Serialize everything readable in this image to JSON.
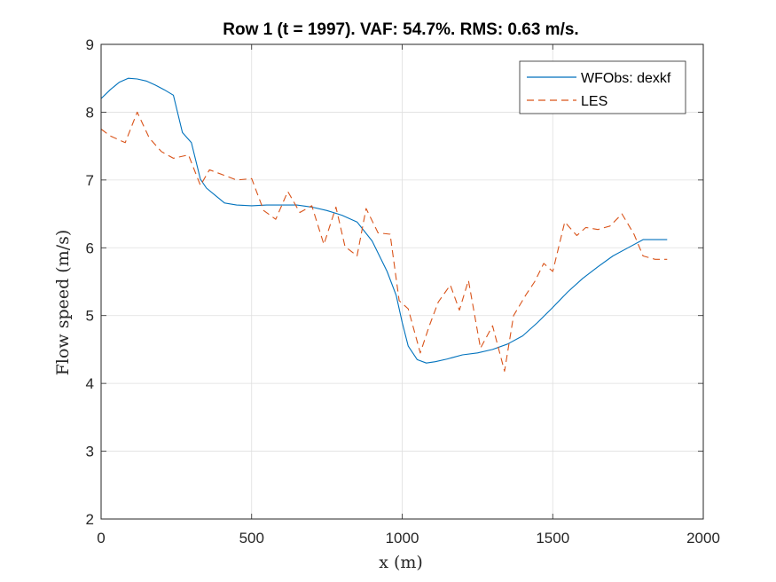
{
  "chart_data": {
    "type": "line",
    "title": "Row 1 (t = 1997). VAF: 54.7%. RMS: 0.63 m/s.",
    "xlabel": "x (m)",
    "ylabel": "Flow speed (m/s)",
    "xlim": [
      0,
      2000
    ],
    "ylim": [
      2,
      9
    ],
    "xticks": [
      0,
      500,
      1000,
      1500,
      2000
    ],
    "yticks": [
      2,
      3,
      4,
      5,
      6,
      7,
      8,
      9
    ],
    "xtick_labels": [
      "0",
      "500",
      "1000",
      "1500",
      "2000"
    ],
    "ytick_labels": [
      "2",
      "3",
      "4",
      "5",
      "6",
      "7",
      "8",
      "9"
    ],
    "grid": true,
    "legend_position": "top-right",
    "series": [
      {
        "name": "WFObs: dexkf",
        "color": "#0072BD",
        "style": "solid",
        "x": [
          0,
          30,
          60,
          90,
          120,
          150,
          180,
          210,
          240,
          270,
          300,
          330,
          350,
          380,
          410,
          450,
          500,
          550,
          600,
          650,
          700,
          750,
          800,
          850,
          900,
          950,
          980,
          1000,
          1020,
          1050,
          1080,
          1110,
          1150,
          1200,
          1250,
          1300,
          1350,
          1400,
          1450,
          1500,
          1550,
          1600,
          1650,
          1700,
          1750,
          1800,
          1850,
          1880
        ],
        "y": [
          8.2,
          8.33,
          8.44,
          8.5,
          8.49,
          8.46,
          8.4,
          8.33,
          8.25,
          7.7,
          7.55,
          7.01,
          6.88,
          6.77,
          6.66,
          6.63,
          6.62,
          6.63,
          6.63,
          6.63,
          6.6,
          6.55,
          6.48,
          6.38,
          6.1,
          5.65,
          5.3,
          4.9,
          4.55,
          4.35,
          4.3,
          4.32,
          4.36,
          4.42,
          4.45,
          4.5,
          4.58,
          4.7,
          4.9,
          5.12,
          5.35,
          5.55,
          5.72,
          5.88,
          6.0,
          6.12,
          6.12,
          6.12
        ],
        "note_x_start": 0
      },
      {
        "name": "LES",
        "color": "#D95319",
        "style": "dashed",
        "x": [
          0,
          30,
          80,
          120,
          160,
          200,
          240,
          290,
          330,
          360,
          390,
          420,
          450,
          500,
          540,
          580,
          620,
          660,
          700,
          740,
          780,
          810,
          850,
          880,
          920,
          960,
          990,
          1020,
          1060,
          1090,
          1120,
          1160,
          1190,
          1220,
          1260,
          1300,
          1340,
          1370,
          1410,
          1440,
          1470,
          1500,
          1540,
          1580,
          1610,
          1650,
          1690,
          1730,
          1770,
          1800,
          1840,
          1880
        ],
        "y": [
          7.75,
          7.65,
          7.55,
          8.0,
          7.62,
          7.42,
          7.32,
          7.37,
          6.92,
          7.15,
          7.1,
          7.05,
          7.0,
          7.02,
          6.55,
          6.42,
          6.83,
          6.52,
          6.62,
          6.05,
          6.6,
          6.02,
          5.88,
          6.58,
          6.22,
          6.2,
          5.22,
          5.1,
          4.45,
          4.85,
          5.2,
          5.45,
          5.08,
          5.52,
          4.52,
          4.85,
          4.18,
          5.0,
          5.3,
          5.5,
          5.77,
          5.65,
          6.38,
          6.18,
          6.3,
          6.27,
          6.32,
          6.5,
          6.2,
          5.88,
          5.83,
          5.83
        ]
      }
    ]
  }
}
